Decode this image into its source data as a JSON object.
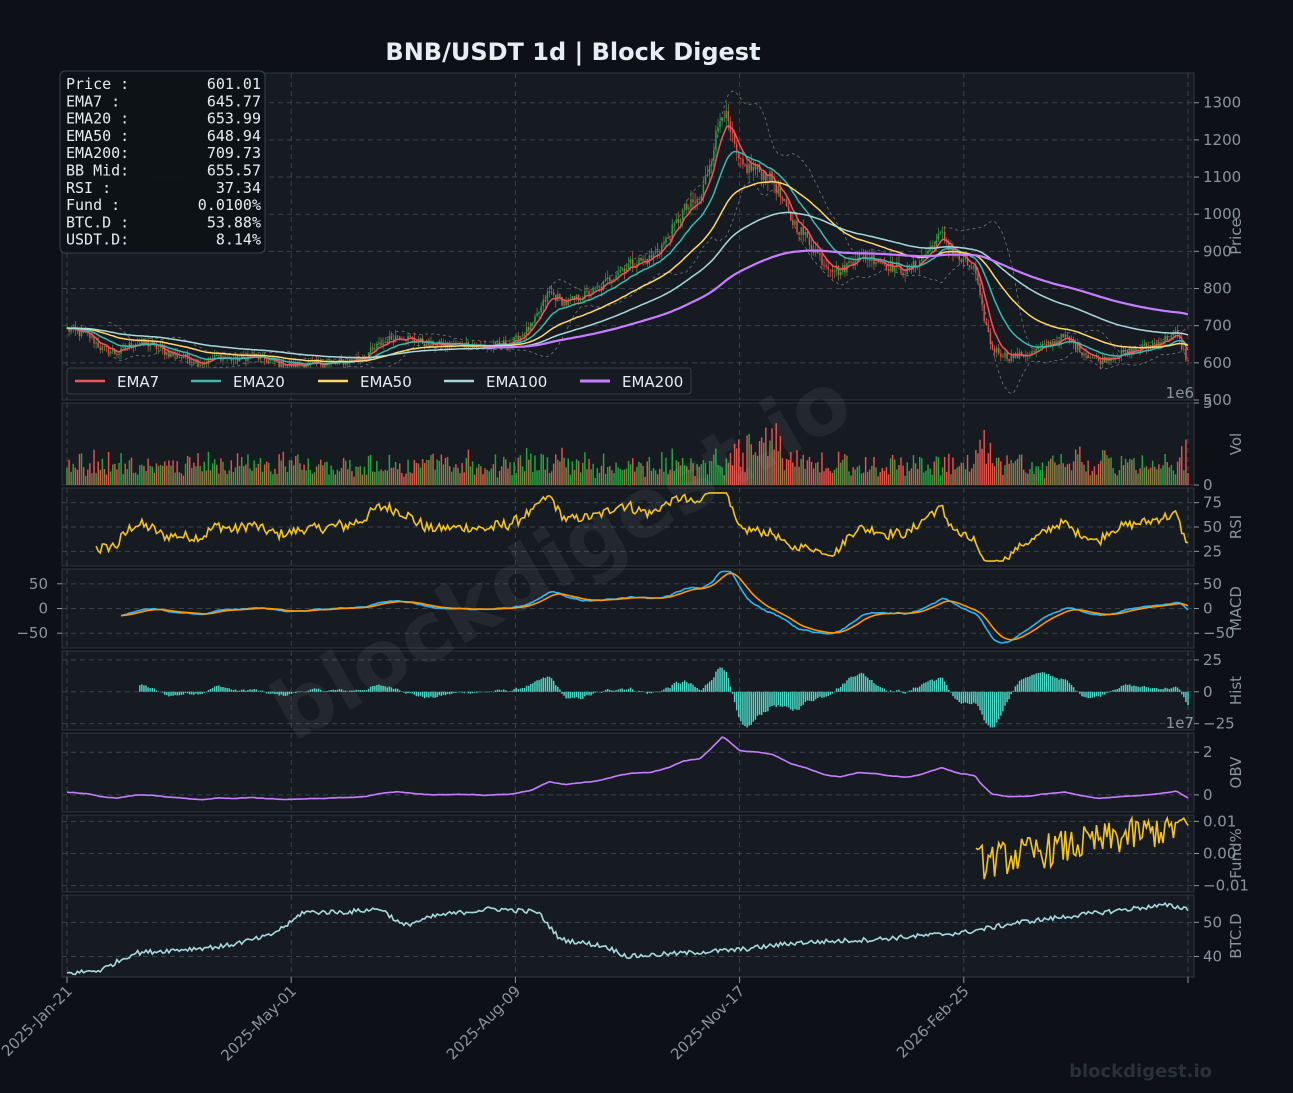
{
  "chart_data": {
    "type": "line",
    "title": "BNB/USDT  1d  |  Block Digest",
    "watermark": "blockdigest.io",
    "footer_text": "blockdigest.io",
    "x_ticks": [
      "2025-Jan-21",
      "2025-May-01",
      "2025-Aug-09",
      "2025-Nov-17",
      "2026-Feb-25"
    ],
    "info_box": [
      {
        "label": "Price :",
        "value": "601.01"
      },
      {
        "label": "EMA7  :",
        "value": "645.77"
      },
      {
        "label": "EMA20 :",
        "value": "653.99"
      },
      {
        "label": "EMA50 :",
        "value": "648.94"
      },
      {
        "label": "EMA200:",
        "value": "709.73"
      },
      {
        "label": "BB Mid:",
        "value": "655.57"
      },
      {
        "label": "RSI   :",
        "value": "37.34"
      },
      {
        "label": "Fund  :",
        "value": "0.0100%"
      },
      {
        "label": "BTC.D :",
        "value": "53.88%"
      },
      {
        "label": "USDT.D:",
        "value": "8.14%"
      }
    ],
    "legend": [
      {
        "name": "EMA7",
        "color": "#f0555a"
      },
      {
        "name": "EMA20",
        "color": "#3fb8b0"
      },
      {
        "name": "EMA50",
        "color": "#ffd866"
      },
      {
        "name": "EMA100",
        "color": "#a8dadc"
      },
      {
        "name": "EMA200",
        "color": "#c77dff"
      }
    ],
    "colors": {
      "up": "#26a641",
      "down": "#e5534b",
      "rsi": "#f5c518",
      "macd": "#29b6f6",
      "signal": "#ff9800",
      "hist": "#4ed8c8",
      "obv": "#c77dff",
      "funding": "#f5c518",
      "btcd": "#a8dadc"
    },
    "price_series": [
      {
        "t": 0,
        "v": 690
      },
      {
        "t": 0.02,
        "v": 672
      },
      {
        "t": 0.03,
        "v": 640
      },
      {
        "t": 0.045,
        "v": 625
      },
      {
        "t": 0.06,
        "v": 655
      },
      {
        "t": 0.075,
        "v": 650
      },
      {
        "t": 0.09,
        "v": 625
      },
      {
        "t": 0.105,
        "v": 615
      },
      {
        "t": 0.12,
        "v": 598
      },
      {
        "t": 0.135,
        "v": 618
      },
      {
        "t": 0.15,
        "v": 608
      },
      {
        "t": 0.165,
        "v": 620
      },
      {
        "t": 0.18,
        "v": 605
      },
      {
        "t": 0.195,
        "v": 592
      },
      {
        "t": 0.21,
        "v": 595
      },
      {
        "t": 0.23,
        "v": 598
      },
      {
        "t": 0.25,
        "v": 604
      },
      {
        "t": 0.265,
        "v": 618
      },
      {
        "t": 0.28,
        "v": 652
      },
      {
        "t": 0.295,
        "v": 674
      },
      {
        "t": 0.31,
        "v": 662
      },
      {
        "t": 0.325,
        "v": 648
      },
      {
        "t": 0.34,
        "v": 648
      },
      {
        "t": 0.355,
        "v": 650
      },
      {
        "t": 0.37,
        "v": 644
      },
      {
        "t": 0.385,
        "v": 648
      },
      {
        "t": 0.4,
        "v": 660
      },
      {
        "t": 0.415,
        "v": 700
      },
      {
        "t": 0.43,
        "v": 790
      },
      {
        "t": 0.445,
        "v": 760
      },
      {
        "t": 0.46,
        "v": 780
      },
      {
        "t": 0.475,
        "v": 800
      },
      {
        "t": 0.49,
        "v": 845
      },
      {
        "t": 0.505,
        "v": 870
      },
      {
        "t": 0.52,
        "v": 880
      },
      {
        "t": 0.535,
        "v": 930
      },
      {
        "t": 0.55,
        "v": 1010
      },
      {
        "t": 0.565,
        "v": 1040
      },
      {
        "t": 0.575,
        "v": 1160
      },
      {
        "t": 0.585,
        "v": 1290
      },
      {
        "t": 0.6,
        "v": 1130
      },
      {
        "t": 0.615,
        "v": 1120
      },
      {
        "t": 0.63,
        "v": 1090
      },
      {
        "t": 0.645,
        "v": 990
      },
      {
        "t": 0.66,
        "v": 935
      },
      {
        "t": 0.675,
        "v": 870
      },
      {
        "t": 0.69,
        "v": 845
      },
      {
        "t": 0.705,
        "v": 890
      },
      {
        "t": 0.72,
        "v": 880
      },
      {
        "t": 0.735,
        "v": 860
      },
      {
        "t": 0.75,
        "v": 845
      },
      {
        "t": 0.765,
        "v": 890
      },
      {
        "t": 0.78,
        "v": 945
      },
      {
        "t": 0.795,
        "v": 880
      },
      {
        "t": 0.81,
        "v": 850
      },
      {
        "t": 0.815,
        "v": 760
      },
      {
        "t": 0.825,
        "v": 640
      },
      {
        "t": 0.84,
        "v": 615
      },
      {
        "t": 0.86,
        "v": 625
      },
      {
        "t": 0.875,
        "v": 650
      },
      {
        "t": 0.89,
        "v": 670
      },
      {
        "t": 0.905,
        "v": 632
      },
      {
        "t": 0.92,
        "v": 605
      },
      {
        "t": 0.935,
        "v": 620
      },
      {
        "t": 0.95,
        "v": 632
      },
      {
        "t": 0.965,
        "v": 645
      },
      {
        "t": 0.98,
        "v": 665
      },
      {
        "t": 0.99,
        "v": 680
      },
      {
        "t": 1,
        "v": 601
      }
    ],
    "panels": [
      {
        "id": "price",
        "ylabel": "Price",
        "ylim": [
          500,
          1380
        ],
        "yticks": [
          "500",
          "600",
          "700",
          "800",
          "900",
          "1000",
          "1100",
          "1200",
          "1300"
        ],
        "exponent": "1e6"
      },
      {
        "id": "vol",
        "ylabel": "Vol",
        "ylim": [
          0,
          5
        ],
        "yticks": [
          "0",
          "5"
        ]
      },
      {
        "id": "rsi",
        "ylabel": "RSI",
        "ylim": [
          10,
          90
        ],
        "yticks": [
          "25",
          "50",
          "75"
        ],
        "left_ticks": []
      },
      {
        "id": "macd",
        "ylabel": "MACD",
        "ylim": [
          -80,
          80
        ],
        "yticks": [
          "−50",
          "0",
          "50"
        ],
        "left_ticks": [
          "50",
          "0",
          "−50"
        ]
      },
      {
        "id": "hist",
        "ylabel": "Hist",
        "ylim": [
          -30,
          32
        ],
        "yticks": [
          "−25",
          "0",
          "25"
        ],
        "exponent": "1e7"
      },
      {
        "id": "obv",
        "ylabel": "OBV",
        "ylim": [
          -0.8,
          2.9
        ],
        "yticks": [
          "0",
          "2"
        ]
      },
      {
        "id": "fund",
        "ylabel": "Fund%",
        "ylim": [
          -0.012,
          0.012
        ],
        "yticks": [
          "−0.01",
          "0.00",
          "0.01"
        ]
      },
      {
        "id": "btcd",
        "ylabel": "BTC.D",
        "ylim": [
          34,
          58
        ],
        "yticks": [
          "40",
          "50"
        ]
      }
    ]
  }
}
